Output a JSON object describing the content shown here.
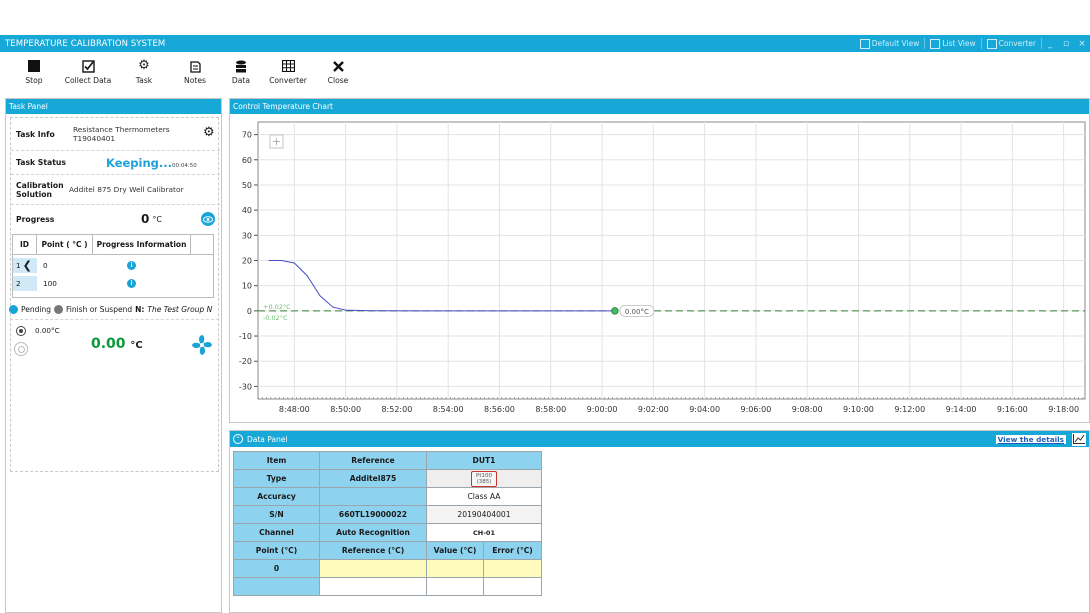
{
  "window": {
    "title": "TEMPERATURE CALIBRATION SYSTEM",
    "view_buttons": [
      "Default View",
      "List View",
      "Converter"
    ],
    "controls": [
      "_",
      "▫",
      "×"
    ]
  },
  "toolbar": {
    "buttons": [
      {
        "label": "Stop",
        "icon": "stop-icon"
      },
      {
        "label": "Collect Data",
        "icon": "checkbox-icon"
      },
      {
        "label": "Task",
        "icon": "gear-icon"
      },
      {
        "label": "Notes",
        "icon": "notes-icon"
      },
      {
        "label": "Data",
        "icon": "database-icon"
      },
      {
        "label": "Converter",
        "icon": "calculator-icon"
      },
      {
        "label": "Close",
        "icon": "close-icon"
      }
    ]
  },
  "task_panel": {
    "title": "Task Panel",
    "task_info_label": "Task Info",
    "task_info_line1": "Resistance Thermometers",
    "task_info_line2": "T19040401",
    "task_status_label": "Task Status",
    "task_status_value": "Keeping...",
    "task_status_time": "00:04:50",
    "calibration_label_1": "Calibration",
    "calibration_label_2": "Solution",
    "calibration_value": "Additel 875 Dry Well Calibrator",
    "progress_label": "Progress",
    "progress_value": "0",
    "progress_unit": "°C",
    "table_headers": [
      "ID",
      "Point ( °C )",
      "Progress Information"
    ],
    "points": [
      {
        "id": "1",
        "point": "0",
        "status": "i"
      },
      {
        "id": "2",
        "point": "100",
        "status": "i"
      }
    ],
    "legend_pending": "Pending",
    "legend_finish": "Finish or Suspend",
    "legend_n_label": "N:",
    "legend_n_text": "The Test Group N",
    "setpoint": "0.00°C",
    "current_temp": "0.00",
    "current_temp_unit": "°C"
  },
  "chart_panel": {
    "title": "Control Temperature Chart",
    "stability_upper": "+0.02°C",
    "stability_lower": "-0.02°C",
    "marker_label": "0.00°C"
  },
  "chart_data": {
    "type": "line",
    "title": "",
    "xlabel": "",
    "ylabel": "",
    "x_ticks": [
      "8:48:00",
      "8:50:00",
      "8:52:00",
      "8:54:00",
      "8:56:00",
      "8:58:00",
      "9:00:00",
      "9:02:00",
      "9:04:00",
      "9:06:00",
      "9:08:00",
      "9:10:00",
      "9:12:00",
      "9:14:00",
      "9:16:00",
      "9:18:00"
    ],
    "y_ticks": [
      70,
      60,
      50,
      40,
      30,
      20,
      10,
      0,
      -10,
      -20,
      -30
    ],
    "ylim": [
      -35,
      75
    ],
    "xlim": [
      "8:46:35",
      "9:18:50"
    ],
    "grid": true,
    "series": [
      {
        "color": "#4a4fc8",
        "x": [
          "8:47:00",
          "8:47:30",
          "8:48:00",
          "8:48:30",
          "8:49:00",
          "8:49:30",
          "8:50:00",
          "8:51:00",
          "8:53:00",
          "8:56:00",
          "8:59:00",
          "9:00:30"
        ],
        "y": [
          20,
          20,
          19,
          14,
          6,
          1.5,
          0.3,
          0.05,
          0,
          0,
          0,
          0
        ]
      }
    ],
    "reference_line": {
      "y": 0,
      "color": "#3a7d3a"
    },
    "marker": {
      "x": "9:00:30",
      "y": 0
    }
  },
  "data_panel": {
    "title": "Data Panel",
    "view_details": "View the details",
    "rows": [
      {
        "item": "Item",
        "reference": "Reference",
        "dut": "DUT1"
      },
      {
        "item": "Type",
        "reference": "Additel875",
        "dut": ""
      },
      {
        "item": "Accuracy",
        "reference": "",
        "dut": "Class AA"
      },
      {
        "item": "S/N",
        "reference": "660TL19000022",
        "dut": "20190404001"
      },
      {
        "item": "Channel",
        "reference": "Auto Recognition",
        "dut": "CH-01"
      }
    ],
    "probe_label_1": "Pt100",
    "probe_label_2": "(385)",
    "point_header": "Point (°C)",
    "reference_header": "Reference (°C)",
    "value_header": "Value (°C)",
    "error_header": "Error (°C)",
    "first_point": "0"
  },
  "colors": {
    "accent": "#17a8d8",
    "header_cell": "#8dd3ef",
    "curve": "#4a4fc8",
    "reference_line": "#3a7d3a",
    "temp_green": "#0a9a3a"
  }
}
